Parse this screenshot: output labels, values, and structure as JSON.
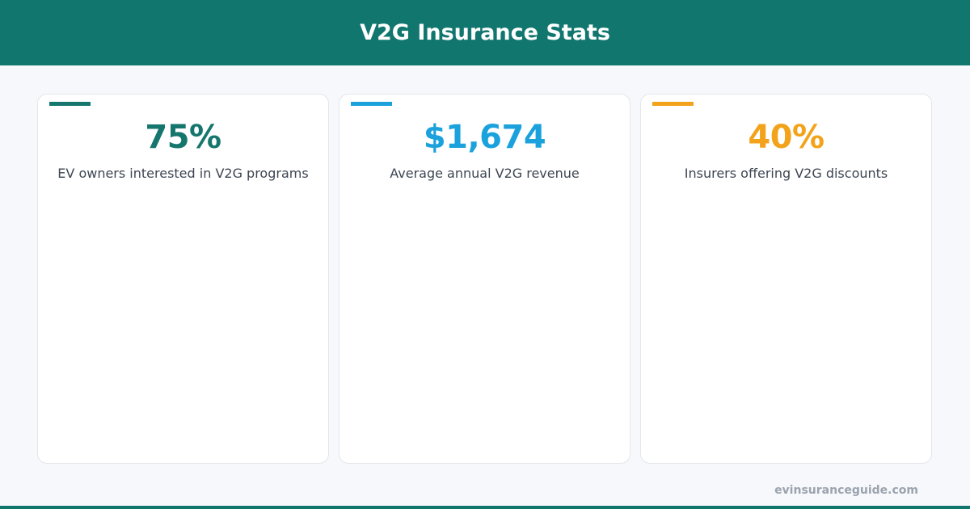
{
  "header": {
    "title": "V2G Insurance Stats"
  },
  "cards": [
    {
      "value": "75%",
      "label": "EV owners interested in V2G programs",
      "color": "#15766d"
    },
    {
      "value": "$1,674",
      "label": "Average annual V2G revenue",
      "color": "#1ba2dd"
    },
    {
      "value": "40%",
      "label": "Insurers offering V2G discounts",
      "color": "#f2a31b"
    }
  ],
  "footer": {
    "site": "evinsuranceguide.com"
  }
}
